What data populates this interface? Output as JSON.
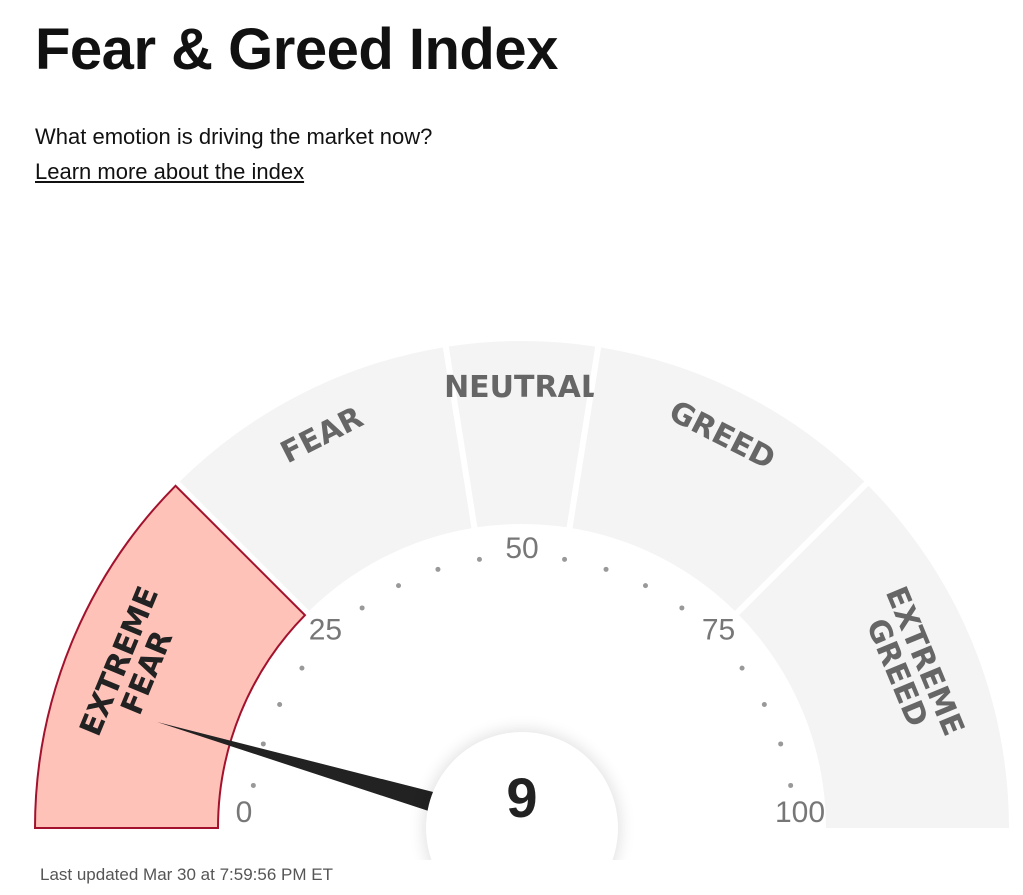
{
  "header": {
    "title": "Fear & Greed Index",
    "subtitle": "What emotion is driving the market now?",
    "link": "Learn more about the index"
  },
  "gauge": {
    "min": 0,
    "max": 100,
    "ticks": [
      0,
      25,
      50,
      75,
      100
    ],
    "value": 9,
    "segment_color": "#f4f4f4",
    "active_color": "#ffc2b9",
    "active_border": "#a3122d",
    "segments": [
      {
        "label": [
          "EXTREME",
          "FEAR"
        ],
        "range": [
          0,
          25
        ]
      },
      {
        "label": [
          "FEAR"
        ],
        "range": [
          25,
          45
        ]
      },
      {
        "label": [
          "NEUTRAL"
        ],
        "range": [
          45,
          55
        ]
      },
      {
        "label": [
          "GREED"
        ],
        "range": [
          55,
          75
        ]
      },
      {
        "label": [
          "EXTREME",
          "GREED"
        ],
        "range": [
          75,
          100
        ]
      }
    ]
  },
  "footer": {
    "updated": "Last updated Mar 30 at 7:59:56 PM ET"
  }
}
